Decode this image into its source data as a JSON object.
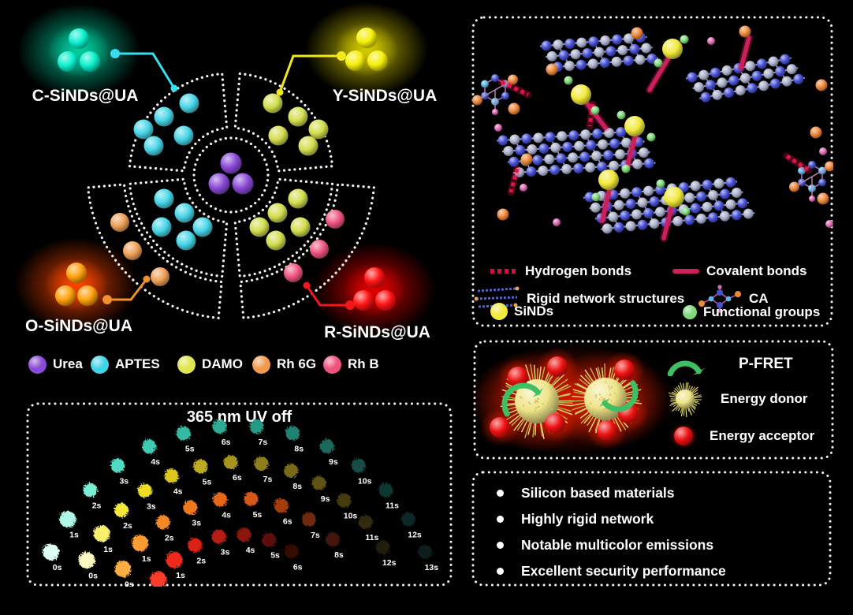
{
  "figure": {
    "background": "#000000",
    "outline_color": "#f5f5f5"
  },
  "wheel": {
    "clusters": [
      {
        "label": "C-SiNDs@UA",
        "ball_color": "#0af0cc",
        "glow_color": "#00d2a0",
        "line_color": "#35dff0"
      },
      {
        "label": "Y-SiNDs@UA",
        "ball_color": "#f6ef0a",
        "glow_color": "#d7cd00",
        "line_color": "#f0e818"
      },
      {
        "label": "O-SiNDs@UA",
        "ball_color": "#ffa20d",
        "glow_color": "#ff4600",
        "line_color": "#f09030"
      },
      {
        "label": "R-SiNDs@UA",
        "ball_color": "#ff1414",
        "glow_color": "#e60000",
        "line_color": "#f01818"
      }
    ],
    "segment_colors": {
      "urea": "#8a49d6",
      "aptes": "#49d6e8",
      "damo": "#d3de4e",
      "rh6g": "#f0a058",
      "rhb": "#f0557f"
    },
    "legend": [
      {
        "label": "Urea",
        "color": "#8a49d6"
      },
      {
        "label": "APTES",
        "color": "#3fd4e6"
      },
      {
        "label": "DAMO",
        "color": "#dfe54a"
      },
      {
        "label": "Rh 6G",
        "color": "#f09a4e"
      },
      {
        "label": "Rh B",
        "color": "#f0527e"
      }
    ]
  },
  "uv_panel": {
    "title": "365 nm UV off",
    "series": [
      {
        "name": "C-SiNDs@UA",
        "labels": [
          "0s",
          "1s",
          "2s",
          "3s",
          "4s",
          "5s",
          "6s",
          "7s",
          "8s",
          "9s",
          "10s",
          "11s",
          "12s",
          "13s"
        ],
        "colors": [
          "#defff4",
          "#b0f8e6",
          "#7deed6",
          "#4fdcc2",
          "#3cccb2",
          "#33bba2",
          "#2dab94",
          "#289a86",
          "#218272",
          "#1b685d",
          "#144e46",
          "#0e3833",
          "#0a2826",
          "#071c1c"
        ]
      },
      {
        "name": "Y-SiNDs@UA",
        "labels": [
          "0s",
          "1s",
          "2s",
          "3s",
          "4s",
          "5s",
          "6s",
          "7s",
          "8s",
          "9s",
          "10s",
          "11s",
          "12s"
        ],
        "colors": [
          "#fdf8c2",
          "#f9f06e",
          "#f4e93a",
          "#efdc28",
          "#dcc724",
          "#bfab20",
          "#a6941d",
          "#8f7f1a",
          "#786a16",
          "#5e5312",
          "#453d0e",
          "#302b0a",
          "#201d07"
        ]
      },
      {
        "name": "O-SiNDs@UA",
        "labels": [
          "0s",
          "1s",
          "2s",
          "3s",
          "4s",
          "5s",
          "6s",
          "7s",
          "8s"
        ],
        "colors": [
          "#fcae42",
          "#f99d33",
          "#f48a28",
          "#ef781e",
          "#e66719",
          "#d55614",
          "#a53e0f",
          "#71290a",
          "#441807"
        ]
      },
      {
        "name": "R-SiNDs@UA",
        "labels": [
          "0s",
          "1s",
          "2s",
          "3s",
          "4s",
          "5s",
          "6s"
        ],
        "colors": [
          "#fb3d2a",
          "#ef2c1f",
          "#da2418",
          "#b81d12",
          "#8c160d",
          "#5c0e09",
          "#350805"
        ]
      }
    ]
  },
  "structure_panel": {
    "legend": [
      {
        "icon": "hydrogen-bond-icon",
        "label": "Hydrogen bonds",
        "color": "#e0164a"
      },
      {
        "icon": "covalent-bond-icon",
        "label": "Covalent bonds",
        "color": "#cc1f5e"
      },
      {
        "icon": "rigid-network-icon",
        "label": "Rigid network structures",
        "color": "#4650d4"
      },
      {
        "icon": "ca-molecule-icon",
        "label": "CA",
        "color": "#4650d4"
      },
      {
        "icon": "sinds-ball-icon",
        "label": "SiNDs",
        "color": "#f2ea3c"
      },
      {
        "icon": "functional-group-icon",
        "label": "Functional groups",
        "color": "#7fd97a"
      }
    ]
  },
  "fret_panel": {
    "legend": [
      {
        "icon": "rotation-arrow-icon",
        "label": "P-FRET",
        "color": "#3fbf63"
      },
      {
        "icon": "energy-donor-icon",
        "label": "Energy donor",
        "color": "#efe89a"
      },
      {
        "icon": "energy-acceptor-icon",
        "label": "Energy acceptor",
        "color": "#ee1111"
      }
    ]
  },
  "highlights_panel": {
    "items": [
      "Silicon based materials",
      "Highly rigid network",
      "Notable multicolor emissions",
      "Excellent security performance"
    ]
  }
}
